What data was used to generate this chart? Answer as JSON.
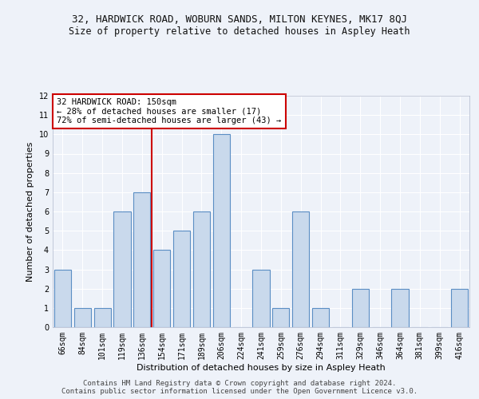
{
  "title_line1": "32, HARDWICK ROAD, WOBURN SANDS, MILTON KEYNES, MK17 8QJ",
  "title_line2": "Size of property relative to detached houses in Aspley Heath",
  "xlabel": "Distribution of detached houses by size in Aspley Heath",
  "ylabel": "Number of detached properties",
  "categories": [
    "66sqm",
    "84sqm",
    "101sqm",
    "119sqm",
    "136sqm",
    "154sqm",
    "171sqm",
    "189sqm",
    "206sqm",
    "224sqm",
    "241sqm",
    "259sqm",
    "276sqm",
    "294sqm",
    "311sqm",
    "329sqm",
    "346sqm",
    "364sqm",
    "381sqm",
    "399sqm",
    "416sqm"
  ],
  "values": [
    3,
    1,
    1,
    6,
    7,
    4,
    5,
    6,
    10,
    0,
    3,
    1,
    6,
    1,
    0,
    2,
    0,
    2,
    0,
    0,
    2
  ],
  "bar_color": "#c9d9ec",
  "bar_edgecolor": "#5b8ec4",
  "vline_x": 4.5,
  "vline_color": "#cc0000",
  "annotation_text": "32 HARDWICK ROAD: 150sqm\n← 28% of detached houses are smaller (17)\n72% of semi-detached houses are larger (43) →",
  "annotation_box_edgecolor": "#cc0000",
  "annotation_box_facecolor": "#ffffff",
  "ylim": [
    0,
    12
  ],
  "yticks": [
    0,
    1,
    2,
    3,
    4,
    5,
    6,
    7,
    8,
    9,
    10,
    11,
    12
  ],
  "footer": "Contains HM Land Registry data © Crown copyright and database right 2024.\nContains public sector information licensed under the Open Government Licence v3.0.",
  "background_color": "#eef2f9",
  "grid_color": "#ffffff",
  "title_fontsize": 9,
  "subtitle_fontsize": 8.5,
  "tick_fontsize": 7,
  "annotation_fontsize": 7.5,
  "xlabel_fontsize": 8,
  "ylabel_fontsize": 8,
  "footer_fontsize": 6.5
}
